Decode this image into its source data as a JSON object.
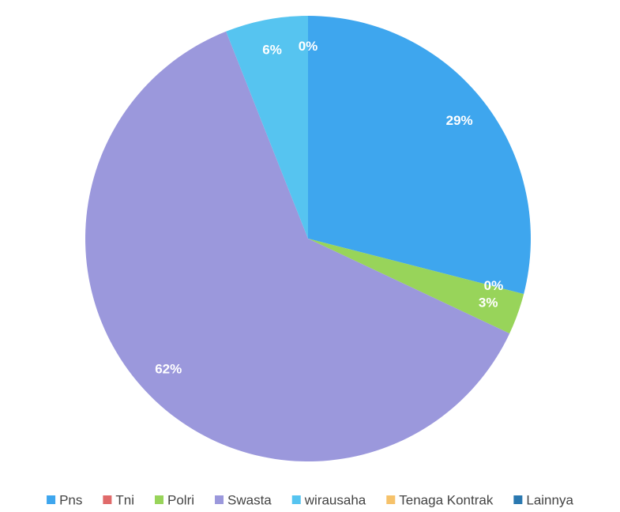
{
  "chart_data": {
    "type": "pie",
    "categories": [
      "Pns",
      "Tni",
      "Polri",
      "Swasta",
      "wirausaha",
      "Tenaga Kontrak",
      "Lainnya"
    ],
    "values": [
      29,
      0,
      3,
      62,
      6,
      0,
      0
    ],
    "value_labels": [
      "29%",
      "0%",
      "3%",
      "62%",
      "6%",
      "0%",
      null
    ],
    "colors": [
      "#3ea6ee",
      "#e06a6a",
      "#98d45a",
      "#9b98dc",
      "#56c4f0",
      "#f6c26a",
      "#2a78b0"
    ],
    "legend": "bottom"
  }
}
